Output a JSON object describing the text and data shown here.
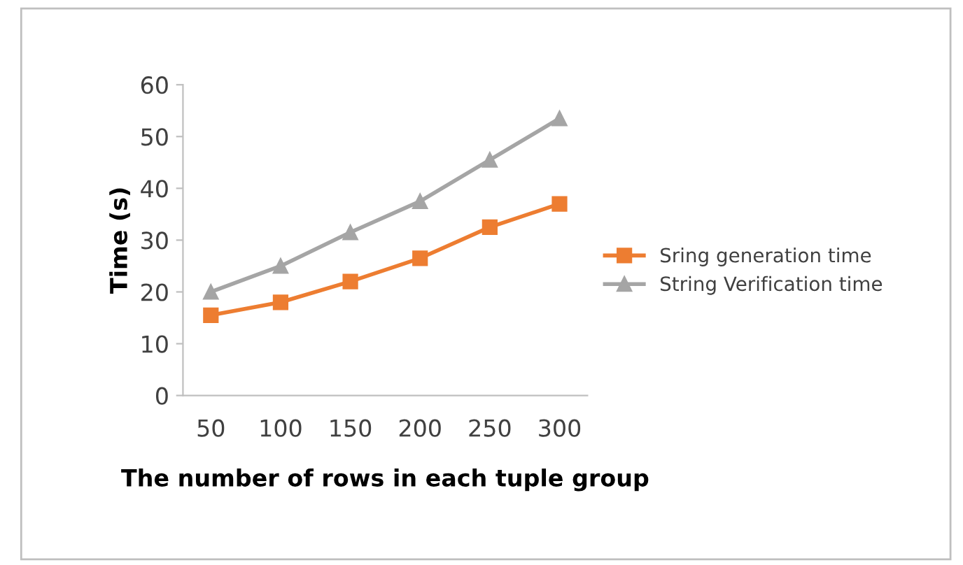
{
  "chart_data": {
    "type": "line",
    "xlabel": "The number of rows in each tuple group",
    "ylabel": "Time (s)",
    "categories": [
      "50",
      "100",
      "150",
      "200",
      "250",
      "300"
    ],
    "series": [
      {
        "name": "Sring generation time",
        "color": "#ed7d31",
        "marker": "square",
        "values": [
          15.5,
          18,
          22,
          26.5,
          32.5,
          37
        ]
      },
      {
        "name": "String Verification time",
        "color": "#a5a5a5",
        "marker": "triangle",
        "values": [
          20,
          25,
          31.5,
          37.5,
          45.5,
          53.5
        ]
      }
    ],
    "ylim": [
      0,
      60
    ],
    "yticks": [
      0,
      10,
      20,
      30,
      40,
      50,
      60
    ],
    "grid": false,
    "legend": "right"
  }
}
